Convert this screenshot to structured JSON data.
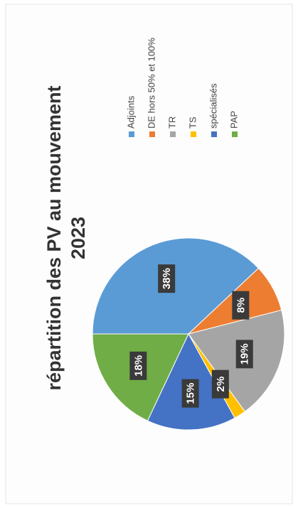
{
  "chart_data": {
    "type": "pie",
    "title": "répartition des PV au mouvement 2023",
    "categories": [
      "Adjoints",
      "DE hors 50% et 100%",
      "TR",
      "TS",
      "spécialisés",
      "PAP"
    ],
    "values": [
      38,
      8,
      19,
      2,
      15,
      18
    ],
    "value_labels": [
      "38%",
      "8%",
      "19%",
      "2%",
      "15%",
      "18%"
    ],
    "colors": [
      "#5b9bd5",
      "#ed7d31",
      "#a5a5a5",
      "#ffc000",
      "#4472c4",
      "#70ad47"
    ],
    "legend": "right"
  }
}
